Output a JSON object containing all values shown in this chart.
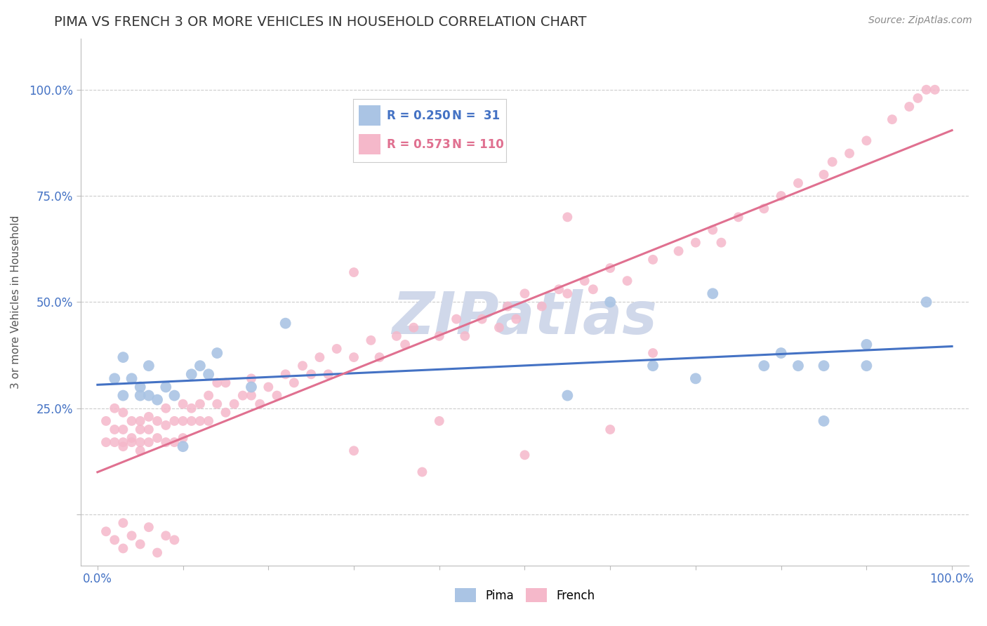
{
  "title": "PIMA VS FRENCH 3 OR MORE VEHICLES IN HOUSEHOLD CORRELATION CHART",
  "source": "Source: ZipAtlas.com",
  "ylabel": "3 or more Vehicles in Household",
  "xlim": [
    -0.02,
    1.02
  ],
  "ylim": [
    -0.12,
    1.12
  ],
  "xticks": [
    0.0,
    0.1,
    0.2,
    0.3,
    0.4,
    0.5,
    0.6,
    0.7,
    0.8,
    0.9,
    1.0
  ],
  "xticklabels": [
    "0.0%",
    "",
    "",
    "",
    "",
    "",
    "",
    "",
    "",
    "",
    "100.0%"
  ],
  "yticks": [
    0.0,
    0.25,
    0.5,
    0.75,
    1.0
  ],
  "yticklabels": [
    "",
    "25.0%",
    "50.0%",
    "75.0%",
    "100.0%"
  ],
  "watermark_text": "ZIPatlas",
  "pima_color": "#aac4e4",
  "french_color": "#f5b8ca",
  "pima_line_color": "#4472c4",
  "french_line_color": "#e07090",
  "legend_R_pima": "0.250",
  "legend_N_pima": " 31",
  "legend_R_french": "0.573",
  "legend_N_french": "110",
  "pima_x": [
    0.02,
    0.03,
    0.03,
    0.04,
    0.05,
    0.05,
    0.06,
    0.06,
    0.07,
    0.08,
    0.09,
    0.1,
    0.11,
    0.12,
    0.13,
    0.14,
    0.18,
    0.22,
    0.55,
    0.6,
    0.65,
    0.7,
    0.72,
    0.78,
    0.8,
    0.82,
    0.85,
    0.85,
    0.9,
    0.9,
    0.97
  ],
  "pima_y": [
    0.32,
    0.37,
    0.28,
    0.32,
    0.3,
    0.28,
    0.35,
    0.28,
    0.27,
    0.3,
    0.28,
    0.16,
    0.33,
    0.35,
    0.33,
    0.38,
    0.3,
    0.45,
    0.28,
    0.5,
    0.35,
    0.32,
    0.52,
    0.35,
    0.38,
    0.35,
    0.22,
    0.35,
    0.4,
    0.35,
    0.5
  ],
  "french_x": [
    0.01,
    0.01,
    0.02,
    0.02,
    0.02,
    0.03,
    0.03,
    0.03,
    0.03,
    0.04,
    0.04,
    0.04,
    0.05,
    0.05,
    0.05,
    0.05,
    0.06,
    0.06,
    0.06,
    0.07,
    0.07,
    0.08,
    0.08,
    0.08,
    0.09,
    0.09,
    0.1,
    0.1,
    0.1,
    0.11,
    0.11,
    0.12,
    0.12,
    0.13,
    0.13,
    0.14,
    0.14,
    0.15,
    0.15,
    0.16,
    0.17,
    0.18,
    0.18,
    0.19,
    0.2,
    0.21,
    0.22,
    0.23,
    0.24,
    0.25,
    0.26,
    0.27,
    0.28,
    0.3,
    0.3,
    0.32,
    0.33,
    0.35,
    0.36,
    0.37,
    0.38,
    0.4,
    0.4,
    0.42,
    0.43,
    0.45,
    0.47,
    0.48,
    0.49,
    0.5,
    0.5,
    0.52,
    0.54,
    0.55,
    0.57,
    0.58,
    0.6,
    0.6,
    0.62,
    0.65,
    0.65,
    0.68,
    0.7,
    0.72,
    0.73,
    0.75,
    0.78,
    0.8,
    0.82,
    0.85,
    0.86,
    0.88,
    0.9,
    0.93,
    0.95,
    0.96,
    0.97,
    0.98,
    0.55,
    0.3
  ],
  "french_y": [
    0.22,
    0.17,
    0.2,
    0.25,
    0.17,
    0.16,
    0.2,
    0.24,
    0.17,
    0.18,
    0.22,
    0.17,
    0.17,
    0.2,
    0.22,
    0.15,
    0.17,
    0.2,
    0.23,
    0.18,
    0.22,
    0.17,
    0.21,
    0.25,
    0.17,
    0.22,
    0.18,
    0.22,
    0.26,
    0.22,
    0.25,
    0.22,
    0.26,
    0.22,
    0.28,
    0.26,
    0.31,
    0.24,
    0.31,
    0.26,
    0.28,
    0.28,
    0.32,
    0.26,
    0.3,
    0.28,
    0.33,
    0.31,
    0.35,
    0.33,
    0.37,
    0.33,
    0.39,
    0.37,
    0.15,
    0.41,
    0.37,
    0.42,
    0.4,
    0.44,
    0.1,
    0.42,
    0.22,
    0.46,
    0.42,
    0.46,
    0.44,
    0.49,
    0.46,
    0.52,
    0.14,
    0.49,
    0.53,
    0.52,
    0.55,
    0.53,
    0.58,
    0.2,
    0.55,
    0.6,
    0.38,
    0.62,
    0.64,
    0.67,
    0.64,
    0.7,
    0.72,
    0.75,
    0.78,
    0.8,
    0.83,
    0.85,
    0.88,
    0.93,
    0.96,
    0.98,
    1.0,
    1.0,
    0.7,
    0.57
  ],
  "french_extra_x": [
    0.01,
    0.02,
    0.03,
    0.03,
    0.04,
    0.05,
    0.06,
    0.07,
    0.08,
    0.09
  ],
  "french_extra_y": [
    -0.04,
    -0.06,
    -0.02,
    -0.08,
    -0.05,
    -0.07,
    -0.03,
    -0.09,
    -0.05,
    -0.06
  ],
  "background_color": "#ffffff",
  "grid_color": "#cccccc",
  "title_color": "#333333",
  "title_fontsize": 14,
  "axis_label_color": "#555555",
  "tick_label_color": "#4472c4",
  "watermark_color": "#d0d8ea"
}
